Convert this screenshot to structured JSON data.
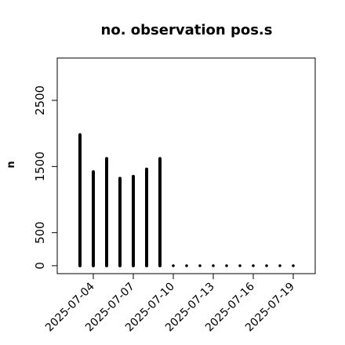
{
  "chart_data": {
    "type": "bar",
    "title": "no. observation pos.s",
    "xlabel": "",
    "ylabel": "n",
    "ylim": [
      -120,
      3140
    ],
    "yticks": [
      0,
      500,
      1500,
      2500
    ],
    "xtick_labels": [
      "2025-07-04",
      "2025-07-07",
      "2025-07-10",
      "2025-07-13",
      "2025-07-16",
      "2025-07-19"
    ],
    "xtick_colors": [
      "#000000",
      "#000000",
      "#228B22",
      "#000000",
      "#000000",
      "#000000"
    ],
    "categories": [
      "2025-07-03",
      "2025-07-04",
      "2025-07-05",
      "2025-07-06",
      "2025-07-07",
      "2025-07-08",
      "2025-07-09",
      "2025-07-10",
      "2025-07-11",
      "2025-07-12",
      "2025-07-13",
      "2025-07-14",
      "2025-07-15",
      "2025-07-16",
      "2025-07-17",
      "2025-07-18",
      "2025-07-19"
    ],
    "values": [
      1980,
      1420,
      1620,
      1320,
      1350,
      1460,
      1620,
      0,
      0,
      0,
      0,
      0,
      0,
      0,
      0,
      0,
      0
    ],
    "bar_color": "#000000",
    "grid": false
  }
}
